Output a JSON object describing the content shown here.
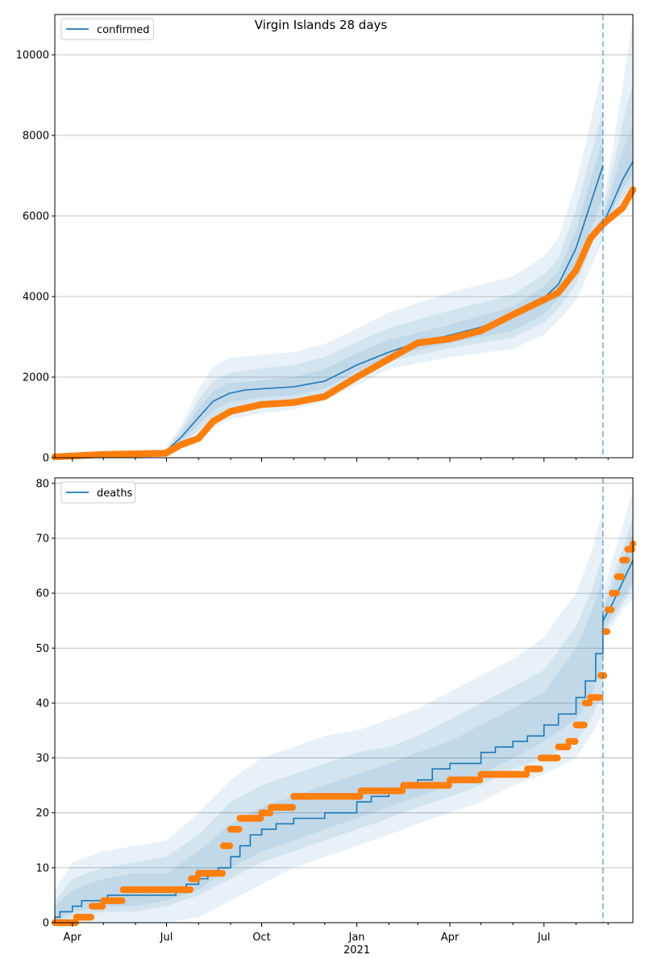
{
  "figure": {
    "title": "Virgin Islands 28 days"
  },
  "colors": {
    "model": "#1f77b4",
    "observed": "#ff7f0e",
    "band": "#1f77b4",
    "grid": "#b0b0b0",
    "vline": "#1f77b4"
  },
  "chart_data": [
    {
      "type": "line",
      "panel": "top",
      "legend": {
        "labels": [
          "confirmed"
        ],
        "position": "top-left"
      },
      "ylim": [
        0,
        11000
      ],
      "yticks": [
        0,
        2000,
        4000,
        6000,
        8000,
        10000
      ],
      "grid": "y",
      "forecast_date": "2021-08-27",
      "series": [
        {
          "name": "confirmed",
          "kind": "model-line",
          "x": [
            "2020-03-15",
            "2020-06-01",
            "2020-06-30",
            "2020-07-15",
            "2020-08-01",
            "2020-08-15",
            "2020-08-31",
            "2020-09-15",
            "2020-10-01",
            "2020-11-01",
            "2020-12-01",
            "2021-01-01",
            "2021-02-01",
            "2021-03-01",
            "2021-04-01",
            "2021-05-01",
            "2021-06-01",
            "2021-07-01",
            "2021-07-15",
            "2021-08-01",
            "2021-08-15",
            "2021-08-27"
          ],
          "values": [
            10,
            60,
            150,
            500,
            1000,
            1400,
            1600,
            1680,
            1710,
            1760,
            1900,
            2300,
            2620,
            2860,
            3040,
            3240,
            3540,
            3970,
            4300,
            5200,
            6300,
            7250
          ]
        },
        {
          "name": "",
          "kind": "model-line",
          "x": [
            "2021-08-27",
            "2021-09-05",
            "2021-09-15",
            "2021-09-25"
          ],
          "values": [
            5800,
            6300,
            6900,
            7350
          ]
        },
        {
          "name": "",
          "kind": "observed",
          "x": [
            "2020-03-15",
            "2020-05-01",
            "2020-06-30",
            "2020-07-15",
            "2020-08-01",
            "2020-08-15",
            "2020-09-01",
            "2020-10-01",
            "2020-11-01",
            "2020-12-01",
            "2021-01-01",
            "2021-02-01",
            "2021-03-01",
            "2021-04-01",
            "2021-05-01",
            "2021-06-01",
            "2021-07-01",
            "2021-07-15",
            "2021-08-01",
            "2021-08-15",
            "2021-08-27",
            "2021-09-15",
            "2021-09-25"
          ],
          "values": [
            20,
            80,
            110,
            320,
            480,
            900,
            1150,
            1320,
            1370,
            1520,
            2000,
            2450,
            2850,
            2950,
            3150,
            3550,
            3920,
            4100,
            4650,
            5450,
            5800,
            6200,
            6650
          ]
        }
      ],
      "bands": [
        {
          "x": [
            "2020-03-15",
            "2020-06-30",
            "2020-07-15",
            "2020-08-01",
            "2020-08-15",
            "2020-08-31",
            "2020-10-01",
            "2020-11-01",
            "2020-12-01",
            "2021-01-01",
            "2021-02-01",
            "2021-04-01",
            "2021-06-01",
            "2021-07-01",
            "2021-07-15",
            "2021-08-01",
            "2021-08-15",
            "2021-08-27"
          ],
          "upper": [
            20,
            220,
            800,
            1700,
            2250,
            2480,
            2550,
            2620,
            2820,
            3200,
            3600,
            4100,
            4500,
            5000,
            5450,
            6800,
            8300,
            9750
          ],
          "lower": [
            0,
            80,
            250,
            500,
            750,
            950,
            1100,
            1200,
            1400,
            1800,
            2200,
            2500,
            2700,
            3050,
            3400,
            3900,
            4700,
            5400
          ]
        },
        {
          "x": [
            "2020-03-15",
            "2020-06-30",
            "2020-07-15",
            "2020-08-01",
            "2020-08-15",
            "2020-08-31",
            "2020-10-01",
            "2020-11-01",
            "2020-12-01",
            "2021-01-01",
            "2021-02-01",
            "2021-04-01",
            "2021-06-01",
            "2021-07-01",
            "2021-07-15",
            "2021-08-01",
            "2021-08-15",
            "2021-08-27"
          ],
          "upper": [
            15,
            190,
            680,
            1450,
            1900,
            2100,
            2220,
            2300,
            2500,
            2870,
            3220,
            3650,
            4050,
            4550,
            4950,
            6150,
            7500,
            8600
          ],
          "lower": [
            2,
            100,
            330,
            680,
            1000,
            1200,
            1330,
            1420,
            1620,
            2020,
            2400,
            2720,
            2980,
            3350,
            3700,
            4300,
            5200,
            5950
          ]
        },
        {
          "x": [
            "2020-03-15",
            "2020-06-30",
            "2020-07-15",
            "2020-08-01",
            "2020-08-15",
            "2020-08-31",
            "2020-10-01",
            "2020-11-01",
            "2020-12-01",
            "2021-01-01",
            "2021-02-01",
            "2021-04-01",
            "2021-06-01",
            "2021-07-01",
            "2021-07-15",
            "2021-08-01",
            "2021-08-15",
            "2021-08-27"
          ],
          "upper": [
            12,
            170,
            590,
            1230,
            1650,
            1850,
            1920,
            2000,
            2200,
            2600,
            2920,
            3300,
            3750,
            4250,
            4620,
            5650,
            6900,
            7900
          ],
          "lower": [
            5,
            125,
            400,
            820,
            1180,
            1380,
            1500,
            1550,
            1720,
            2150,
            2520,
            2850,
            3150,
            3560,
            3950,
            4650,
            5620,
            6450
          ]
        },
        {
          "x": [
            "2021-08-27",
            "2021-09-05",
            "2021-09-15",
            "2021-09-25"
          ],
          "upper": [
            6300,
            7600,
            9200,
            10900
          ],
          "lower": [
            5600,
            5900,
            6200,
            6450
          ]
        },
        {
          "x": [
            "2021-08-27",
            "2021-09-05",
            "2021-09-15",
            "2021-09-25"
          ],
          "upper": [
            6100,
            7100,
            8300,
            9300
          ],
          "lower": [
            5700,
            6050,
            6450,
            6800
          ]
        },
        {
          "x": [
            "2021-08-27",
            "2021-09-05",
            "2021-09-15",
            "2021-09-25"
          ],
          "upper": [
            5950,
            6700,
            7600,
            8300
          ],
          "lower": [
            5750,
            6150,
            6650,
            7050
          ]
        }
      ]
    },
    {
      "type": "line",
      "panel": "bottom",
      "legend": {
        "labels": [
          "deaths"
        ],
        "position": "top-left"
      },
      "ylim": [
        0,
        81
      ],
      "yticks": [
        0,
        10,
        20,
        30,
        40,
        50,
        60,
        70,
        80
      ],
      "grid": "y",
      "forecast_date": "2021-08-27",
      "xticks": [
        "Apr",
        "Jul",
        "Oct",
        "Jan",
        "Apr",
        "Jul"
      ],
      "xtick_dates": [
        "2020-04-01",
        "2020-07-01",
        "2020-10-01",
        "2021-01-01",
        "2021-04-01",
        "2021-07-01"
      ],
      "xyear_label": "2021",
      "xlim": [
        "2020-03-15",
        "2021-09-25"
      ],
      "series": [
        {
          "name": "deaths",
          "kind": "model-step",
          "x": [
            "2020-03-15",
            "2020-03-20",
            "2020-04-01",
            "2020-04-10",
            "2020-05-05",
            "2020-05-15",
            "2020-06-01",
            "2020-07-10",
            "2020-07-20",
            "2020-08-01",
            "2020-08-10",
            "2020-08-20",
            "2020-09-01",
            "2020-09-10",
            "2020-09-20",
            "2020-10-01",
            "2020-10-15",
            "2020-11-01",
            "2020-12-01",
            "2021-01-01",
            "2021-01-15",
            "2021-02-01",
            "2021-02-15",
            "2021-03-01",
            "2021-03-15",
            "2021-04-01",
            "2021-05-01",
            "2021-05-15",
            "2021-06-01",
            "2021-06-15",
            "2021-07-01",
            "2021-07-15",
            "2021-08-01",
            "2021-08-10",
            "2021-08-20",
            "2021-08-27"
          ],
          "values": [
            1,
            2,
            3,
            4,
            5,
            5,
            5,
            6,
            7,
            8,
            9,
            10,
            12,
            14,
            16,
            17,
            18,
            19,
            20,
            22,
            23,
            24,
            25,
            26,
            28,
            29,
            31,
            32,
            33,
            34,
            36,
            38,
            41,
            44,
            49,
            56
          ]
        },
        {
          "name": "",
          "kind": "model-line",
          "x": [
            "2021-08-27",
            "2021-09-05",
            "2021-09-15",
            "2021-09-25"
          ],
          "values": [
            55,
            58,
            62,
            66
          ]
        },
        {
          "name": "",
          "kind": "observed-step",
          "x": [
            "2020-03-15",
            "2020-04-05",
            "2020-04-20",
            "2020-05-01",
            "2020-05-20",
            "2020-07-15",
            "2020-07-25",
            "2020-08-01",
            "2020-08-15",
            "2020-08-25",
            "2020-09-01",
            "2020-09-10",
            "2020-10-01",
            "2020-10-10",
            "2020-11-01",
            "2020-11-10",
            "2020-12-01",
            "2020-12-31",
            "2021-01-05",
            "2021-02-01",
            "2021-02-15",
            "2021-03-15",
            "2021-04-01",
            "2021-05-01",
            "2021-05-15",
            "2021-06-01",
            "2021-06-15",
            "2021-06-28",
            "2021-07-05",
            "2021-07-15",
            "2021-07-25",
            "2021-08-01",
            "2021-08-10",
            "2021-08-15",
            "2021-08-20",
            "2021-08-25",
            "2021-08-29",
            "2021-09-01",
            "2021-09-05",
            "2021-09-10",
            "2021-09-15",
            "2021-09-20",
            "2021-09-25"
          ],
          "values": [
            0,
            1,
            3,
            4,
            6,
            6,
            8,
            9,
            9,
            14,
            17,
            19,
            20,
            21,
            23,
            23,
            23,
            23,
            24,
            24,
            25,
            25,
            26,
            27,
            27,
            27,
            28,
            30,
            30,
            32,
            33,
            36,
            40,
            41,
            41,
            45,
            53,
            57,
            60,
            63,
            66,
            68,
            69
          ]
        }
      ],
      "bands": [
        {
          "x": [
            "2020-03-15",
            "2020-04-01",
            "2020-05-01",
            "2020-06-01",
            "2020-07-01",
            "2020-08-01",
            "2020-09-01",
            "2020-10-01",
            "2020-11-01",
            "2020-12-01",
            "2021-01-01",
            "2021-02-01",
            "2021-03-01",
            "2021-04-01",
            "2021-05-01",
            "2021-06-01",
            "2021-07-01",
            "2021-08-01",
            "2021-08-15",
            "2021-08-27"
          ],
          "upper": [
            6,
            11,
            13,
            14,
            15,
            20,
            26,
            30,
            32,
            34,
            35,
            37,
            39,
            42,
            45,
            48,
            52,
            60,
            67,
            75
          ],
          "lower": [
            0,
            0,
            0,
            0,
            0,
            1,
            4,
            7,
            10,
            12,
            14,
            16,
            18,
            20,
            22,
            25,
            27,
            30,
            34,
            38
          ]
        },
        {
          "x": [
            "2020-03-15",
            "2020-04-01",
            "2020-05-01",
            "2020-06-01",
            "2020-07-01",
            "2020-08-01",
            "2020-09-01",
            "2020-10-01",
            "2020-11-01",
            "2020-12-01",
            "2021-01-01",
            "2021-02-01",
            "2021-03-01",
            "2021-04-01",
            "2021-05-01",
            "2021-06-01",
            "2021-07-01",
            "2021-08-01",
            "2021-08-15",
            "2021-08-27"
          ],
          "upper": [
            4,
            8,
            10,
            11,
            12,
            16,
            22,
            25,
            27,
            29,
            31,
            32,
            34,
            37,
            40,
            43,
            46,
            54,
            60,
            67
          ],
          "lower": [
            0,
            1,
            2,
            2,
            3,
            5,
            8,
            11,
            13,
            15,
            17,
            19,
            21,
            23,
            25,
            28,
            30,
            33,
            37,
            42
          ]
        },
        {
          "x": [
            "2020-03-15",
            "2020-04-01",
            "2020-05-01",
            "2020-06-01",
            "2020-07-01",
            "2020-08-01",
            "2020-09-01",
            "2020-10-01",
            "2020-11-01",
            "2020-12-01",
            "2021-01-01",
            "2021-02-01",
            "2021-03-01",
            "2021-04-01",
            "2021-05-01",
            "2021-06-01",
            "2021-07-01",
            "2021-08-01",
            "2021-08-15",
            "2021-08-27"
          ],
          "upper": [
            3,
            6,
            8,
            9,
            9,
            13,
            18,
            21,
            23,
            25,
            27,
            29,
            31,
            33,
            36,
            39,
            42,
            50,
            56,
            63
          ],
          "lower": [
            0,
            2,
            3,
            3,
            4,
            6,
            10,
            13,
            15,
            17,
            19,
            21,
            23,
            25,
            27,
            30,
            33,
            37,
            41,
            47
          ]
        },
        {
          "x": [
            "2021-08-27",
            "2021-09-05",
            "2021-09-15",
            "2021-09-25"
          ],
          "upper": [
            60,
            66,
            72,
            79
          ],
          "lower": [
            52,
            54,
            57,
            59
          ]
        },
        {
          "x": [
            "2021-08-27",
            "2021-09-05",
            "2021-09-15",
            "2021-09-25"
          ],
          "upper": [
            58,
            63,
            68,
            74
          ],
          "lower": [
            53,
            55,
            58,
            61
          ]
        },
        {
          "x": [
            "2021-08-27",
            "2021-09-05",
            "2021-09-15",
            "2021-09-25"
          ],
          "upper": [
            57,
            61,
            66,
            71
          ],
          "lower": [
            54,
            56,
            59,
            62
          ]
        }
      ]
    }
  ]
}
